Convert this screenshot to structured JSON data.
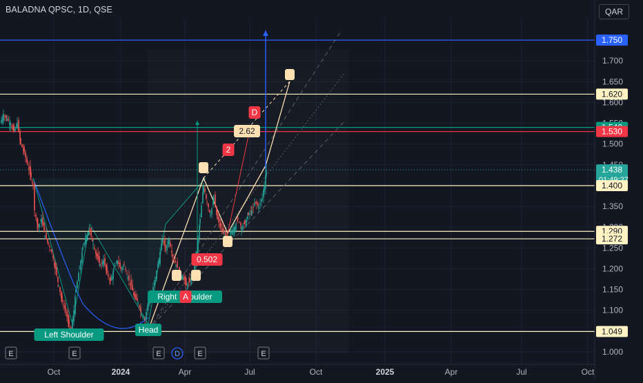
{
  "header": {
    "symbol_line": "BALADNA QPSC, 1D, QSE",
    "currency": "QAR"
  },
  "colors": {
    "bg": "#131722",
    "grid": "#1e222d",
    "candle_up": "#26a69a",
    "candle_down": "#ef5350",
    "horizontal_line": "#fff3c4",
    "target_line": "#2962ff",
    "green_label": "#089981",
    "red_label": "#f23645",
    "pattern_label": "#ffe0b2",
    "pattern_fill": "#26a69a"
  },
  "chart_data": {
    "type": "candlestick",
    "x_labels": [
      "Oct",
      "2024",
      "Apr",
      "Jul",
      "Oct",
      "2025",
      "Apr",
      "Jul",
      "Oct"
    ],
    "y_ticks": [
      "1.750",
      "1.700",
      "1.650",
      "1.600",
      "1.550",
      "1.500",
      "1.450",
      "1.400",
      "1.350",
      "1.300",
      "1.250",
      "1.200",
      "1.150",
      "1.100",
      "1.050",
      "1.000"
    ],
    "ylim": [
      0.97,
      1.8
    ],
    "price_badges": [
      {
        "value": "1.750",
        "style": "blue"
      },
      {
        "value": "1.620",
        "style": "cream"
      },
      {
        "value": "1.540",
        "style": "green"
      },
      {
        "value": "1.530",
        "style": "red"
      },
      {
        "value": "1.438",
        "style": "teal",
        "countdown": "01:49:27"
      },
      {
        "value": "1.400",
        "style": "cream"
      },
      {
        "value": "1.290",
        "style": "cream"
      },
      {
        "value": "1.272",
        "style": "cream"
      },
      {
        "value": "1.049",
        "style": "cream"
      }
    ],
    "horizontal_levels": [
      1.75,
      1.62,
      1.54,
      1.53,
      1.4,
      1.29,
      1.272,
      1.049
    ],
    "last_price": 1.438,
    "close_path": [
      [
        0,
        1.55
      ],
      [
        5,
        1.57
      ],
      [
        10,
        1.56
      ],
      [
        15,
        1.55
      ],
      [
        20,
        1.53
      ],
      [
        25,
        1.55
      ],
      [
        30,
        1.5
      ],
      [
        35,
        1.48
      ],
      [
        40,
        1.45
      ],
      [
        45,
        1.42
      ],
      [
        48,
        1.4
      ],
      [
        50,
        1.34
      ],
      [
        55,
        1.3
      ],
      [
        60,
        1.32
      ],
      [
        65,
        1.28
      ],
      [
        70,
        1.26
      ],
      [
        75,
        1.24
      ],
      [
        80,
        1.2
      ],
      [
        85,
        1.16
      ],
      [
        90,
        1.12
      ],
      [
        95,
        1.1
      ],
      [
        100,
        1.06
      ],
      [
        103,
        1.05
      ],
      [
        107,
        1.1
      ],
      [
        110,
        1.15
      ],
      [
        115,
        1.2
      ],
      [
        120,
        1.25
      ],
      [
        125,
        1.28
      ],
      [
        130,
        1.29
      ],
      [
        135,
        1.26
      ],
      [
        140,
        1.23
      ],
      [
        145,
        1.21
      ],
      [
        150,
        1.22
      ],
      [
        155,
        1.19
      ],
      [
        160,
        1.17
      ],
      [
        165,
        1.2
      ],
      [
        170,
        1.22
      ],
      [
        175,
        1.2
      ],
      [
        180,
        1.21
      ],
      [
        185,
        1.18
      ],
      [
        190,
        1.16
      ],
      [
        195,
        1.13
      ],
      [
        200,
        1.12
      ],
      [
        205,
        1.09
      ],
      [
        210,
        1.08
      ],
      [
        215,
        1.12
      ],
      [
        220,
        1.14
      ],
      [
        225,
        1.18
      ],
      [
        230,
        1.22
      ],
      [
        235,
        1.27
      ],
      [
        240,
        1.25
      ],
      [
        245,
        1.27
      ],
      [
        250,
        1.23
      ],
      [
        255,
        1.21
      ],
      [
        260,
        1.19
      ],
      [
        265,
        1.18
      ],
      [
        270,
        1.16
      ],
      [
        275,
        1.17
      ],
      [
        280,
        1.19
      ],
      [
        285,
        1.24
      ],
      [
        290,
        1.32
      ],
      [
        295,
        1.4
      ],
      [
        300,
        1.36
      ],
      [
        305,
        1.33
      ],
      [
        310,
        1.37
      ],
      [
        315,
        1.32
      ],
      [
        320,
        1.3
      ],
      [
        325,
        1.28
      ],
      [
        330,
        1.27
      ],
      [
        335,
        1.29
      ],
      [
        340,
        1.3
      ],
      [
        345,
        1.32
      ],
      [
        350,
        1.3
      ],
      [
        355,
        1.31
      ],
      [
        360,
        1.33
      ],
      [
        365,
        1.34
      ],
      [
        370,
        1.36
      ],
      [
        375,
        1.35
      ],
      [
        380,
        1.37
      ],
      [
        383,
        1.4
      ],
      [
        386,
        1.438
      ]
    ],
    "pattern_labels": [
      {
        "text": "Left Shoulder",
        "style": "green"
      },
      {
        "text": "Head",
        "style": "green"
      },
      {
        "text": "Right Shoulder",
        "style": "green"
      },
      {
        "text": "0.502",
        "style": "red"
      },
      {
        "text": "2",
        "style": "red"
      },
      {
        "text": "2.62",
        "style": "cream"
      },
      {
        "text": "D",
        "style": "red"
      },
      {
        "text": "A",
        "style": "red"
      }
    ],
    "event_markers": [
      "E",
      "E",
      "E",
      "D",
      "E",
      "E"
    ]
  }
}
